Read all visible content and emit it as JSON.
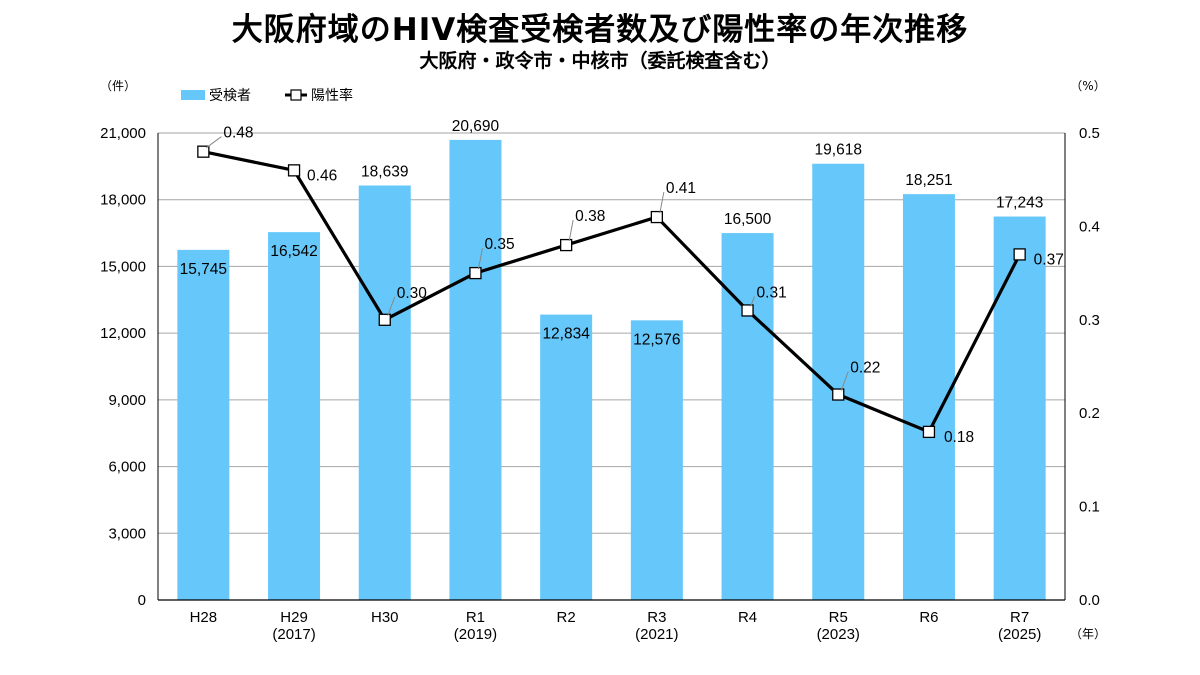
{
  "header": {
    "title": "大阪府域のHIV検査受検者数及び陽性率の年次推移",
    "subtitle": "大阪府・政令市・中核市（委託検査含む）"
  },
  "chart_data": {
    "type": "bar",
    "categories": [
      [
        "H28"
      ],
      [
        "H29",
        "(2017)"
      ],
      [
        "H30"
      ],
      [
        "R1",
        "(2019)"
      ],
      [
        "R2"
      ],
      [
        "R3",
        "(2021)"
      ],
      [
        "R4"
      ],
      [
        "R5",
        "(2023)"
      ],
      [
        "R6"
      ],
      [
        "R7",
        "(2025)"
      ]
    ],
    "series": [
      {
        "name": "受検者",
        "type": "bar",
        "axis": "left",
        "color": "#66c8fa",
        "values": [
          15745,
          16542,
          18639,
          20690,
          12834,
          12576,
          16500,
          19618,
          18251,
          17243
        ],
        "labels": [
          "15,745",
          "16,542",
          "18,639",
          "20,690",
          "12,834",
          "12,576",
          "16,500",
          "19,618",
          "18,251",
          "17,243"
        ]
      },
      {
        "name": "陽性率",
        "type": "line",
        "axis": "right",
        "color": "#000000",
        "values": [
          0.48,
          0.46,
          0.3,
          0.35,
          0.38,
          0.41,
          0.31,
          0.22,
          0.18,
          0.37
        ],
        "labels": [
          "0.48",
          "0.46",
          "0.30",
          "0.35",
          "0.38",
          "0.41",
          "0.31",
          "0.22",
          "0.18",
          "0.37"
        ]
      }
    ],
    "y_left": {
      "unit": "（件）",
      "range": [
        0,
        21000
      ],
      "ticks": [
        0,
        3000,
        6000,
        9000,
        12000,
        15000,
        18000,
        21000
      ],
      "tick_labels": [
        "0",
        "3,000",
        "6,000",
        "9,000",
        "12,000",
        "15,000",
        "18,000",
        "21,000"
      ]
    },
    "y_right": {
      "unit": "（%）",
      "range": [
        0,
        0.5
      ],
      "ticks": [
        0,
        0.1,
        0.2,
        0.3,
        0.4,
        0.5
      ],
      "tick_labels": [
        "0.0",
        "0.1",
        "0.2",
        "0.3",
        "0.4",
        "0.5"
      ]
    },
    "x_unit": "（年）",
    "grid": true,
    "legend_position": "top-left"
  }
}
